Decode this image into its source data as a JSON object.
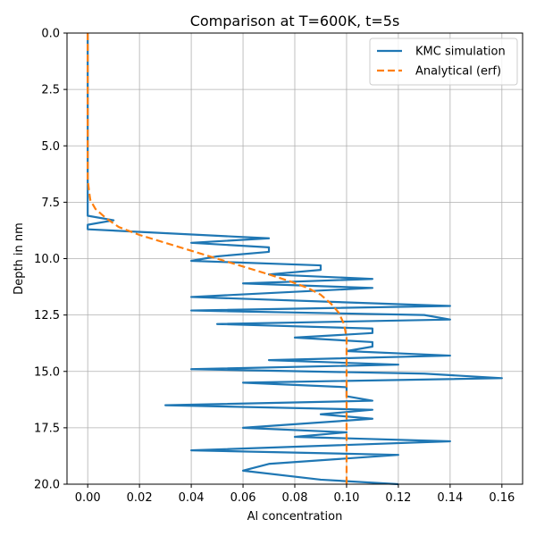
{
  "chart_data": {
    "type": "line",
    "title": "Comparison at T=600K, t=5s",
    "xlabel": "Al concentration",
    "ylabel": "Depth in nm",
    "xlim": [
      -0.008,
      0.168
    ],
    "ylim": [
      20.0,
      0.0
    ],
    "y_inverted": true,
    "grid": true,
    "legend_position": "top-right",
    "x_ticks": [
      "0.00",
      "0.02",
      "0.04",
      "0.06",
      "0.08",
      "0.10",
      "0.12",
      "0.14",
      "0.16"
    ],
    "y_ticks": [
      "0.0",
      "2.5",
      "5.0",
      "7.5",
      "10.0",
      "12.5",
      "15.0",
      "17.5",
      "20.0"
    ],
    "series": [
      {
        "name": "KMC simulation",
        "color": "#1f77b4",
        "style": "solid",
        "points": [
          [
            0.0,
            0.0
          ],
          [
            0.0,
            8.1
          ],
          [
            0.01,
            8.3
          ],
          [
            0.0,
            8.5
          ],
          [
            0.0,
            8.7
          ],
          [
            0.07,
            9.1
          ],
          [
            0.04,
            9.3
          ],
          [
            0.07,
            9.5
          ],
          [
            0.07,
            9.7
          ],
          [
            0.05,
            9.9
          ],
          [
            0.04,
            10.1
          ],
          [
            0.09,
            10.3
          ],
          [
            0.09,
            10.5
          ],
          [
            0.07,
            10.7
          ],
          [
            0.11,
            10.9
          ],
          [
            0.06,
            11.1
          ],
          [
            0.11,
            11.3
          ],
          [
            0.04,
            11.7
          ],
          [
            0.14,
            12.1
          ],
          [
            0.04,
            12.3
          ],
          [
            0.13,
            12.5
          ],
          [
            0.14,
            12.7
          ],
          [
            0.05,
            12.9
          ],
          [
            0.11,
            13.1
          ],
          [
            0.11,
            13.3
          ],
          [
            0.08,
            13.5
          ],
          [
            0.11,
            13.7
          ],
          [
            0.11,
            13.9
          ],
          [
            0.1,
            14.1
          ],
          [
            0.14,
            14.3
          ],
          [
            0.07,
            14.5
          ],
          [
            0.12,
            14.7
          ],
          [
            0.04,
            14.9
          ],
          [
            0.13,
            15.1
          ],
          [
            0.16,
            15.3
          ],
          [
            0.06,
            15.5
          ],
          [
            0.1,
            15.7
          ],
          [
            0.1,
            16.1
          ],
          [
            0.11,
            16.3
          ],
          [
            0.03,
            16.5
          ],
          [
            0.11,
            16.7
          ],
          [
            0.09,
            16.9
          ],
          [
            0.11,
            17.1
          ],
          [
            0.06,
            17.5
          ],
          [
            0.1,
            17.7
          ],
          [
            0.08,
            17.9
          ],
          [
            0.14,
            18.1
          ],
          [
            0.04,
            18.5
          ],
          [
            0.12,
            18.7
          ],
          [
            0.07,
            19.1
          ],
          [
            0.06,
            19.4
          ],
          [
            0.09,
            19.8
          ],
          [
            0.12,
            20.0
          ]
        ]
      },
      {
        "name": "Analytical (erf)",
        "color": "#ff7f0e",
        "style": "dashed",
        "points": [
          [
            0.0,
            0.0
          ],
          [
            0.0,
            5.0
          ],
          [
            0.0,
            6.5
          ],
          [
            0.0005,
            7.0
          ],
          [
            0.001,
            7.4
          ],
          [
            0.003,
            7.8
          ],
          [
            0.007,
            8.2
          ],
          [
            0.012,
            8.6
          ],
          [
            0.02,
            8.95
          ],
          [
            0.03,
            9.3
          ],
          [
            0.04,
            9.65
          ],
          [
            0.05,
            10.0
          ],
          [
            0.06,
            10.35
          ],
          [
            0.07,
            10.7
          ],
          [
            0.078,
            11.0
          ],
          [
            0.085,
            11.3
          ],
          [
            0.09,
            11.6
          ],
          [
            0.094,
            12.0
          ],
          [
            0.097,
            12.4
          ],
          [
            0.099,
            12.9
          ],
          [
            0.1,
            13.5
          ],
          [
            0.1,
            14.5
          ],
          [
            0.1,
            16.0
          ],
          [
            0.1,
            20.0
          ]
        ]
      }
    ]
  }
}
